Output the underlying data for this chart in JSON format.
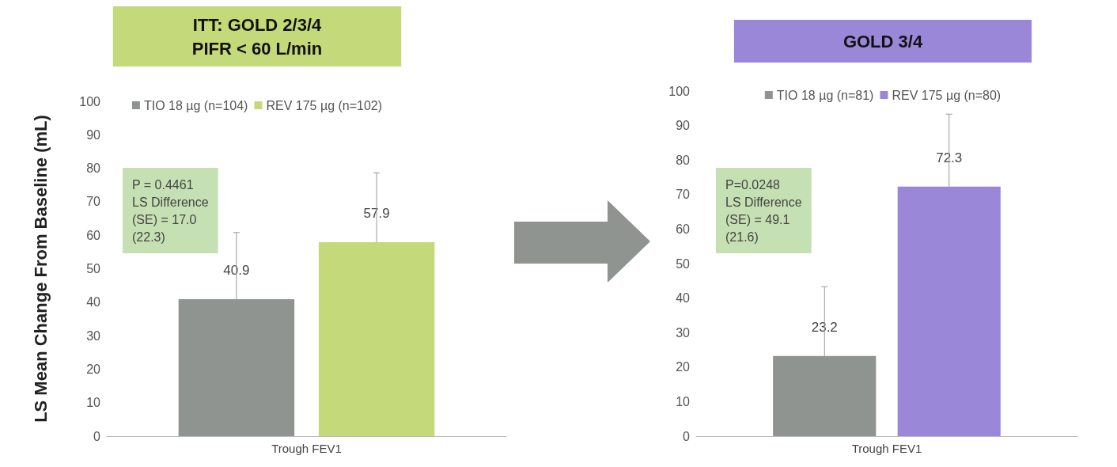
{
  "chart_data": [
    {
      "type": "bar",
      "title": "ITT: GOLD 2/3/4\nPIFR < 60 L/min",
      "ylabel": "LS Mean Change From Baseline (mL)",
      "categories": [
        "Trough FEV1"
      ],
      "series": [
        {
          "name": "TIO 18 µg (n=104)",
          "color": "#8f9490",
          "values": [
            40.9
          ],
          "errors": [
            [
              40.9,
              60.8
            ]
          ]
        },
        {
          "name": "REV 175 µg (n=102)",
          "color": "#c4d97a",
          "values": [
            57.9
          ],
          "errors": [
            [
              57.9,
              78.6
            ]
          ]
        }
      ],
      "ylim": [
        0,
        100
      ],
      "yticks": [
        0,
        10,
        20,
        30,
        40,
        50,
        60,
        70,
        80,
        90,
        100
      ],
      "grid": false,
      "legend": "top",
      "data_labels": true,
      "annotations": [
        "P = 0.4461\nLS Difference\n(SE) = 17.0\n(22.3)"
      ]
    },
    {
      "type": "bar",
      "title": "GOLD 3/4",
      "categories": [
        "Trough FEV1"
      ],
      "series": [
        {
          "name": "TIO 18 µg (n=81)",
          "color": "#8f9490",
          "values": [
            23.2
          ],
          "errors": [
            [
              23.2,
              43.3
            ]
          ]
        },
        {
          "name": "REV 175 µg (n=80)",
          "color": "#9b87d8",
          "values": [
            72.3
          ],
          "errors": [
            [
              72.3,
              93.3
            ]
          ]
        }
      ],
      "ylim": [
        0,
        100
      ],
      "yticks": [
        0,
        10,
        20,
        30,
        40,
        50,
        60,
        70,
        80,
        90,
        100
      ],
      "grid": false,
      "legend": "top",
      "data_labels": true,
      "annotations": [
        "P=0.0248\nLS Difference\n(SE) = 49.1\n(21.6)"
      ]
    }
  ]
}
